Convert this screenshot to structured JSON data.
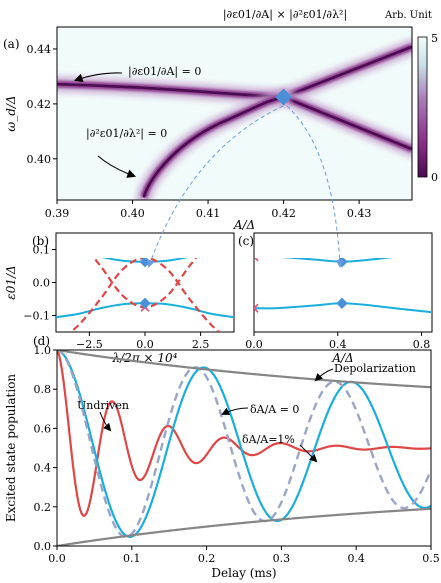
{
  "panel_a": {
    "panel_label": "(a)",
    "colorbar_header": "|∂ε01/∂A| × |∂²ε01/∂λ²|",
    "colorbar_unit": "Arb. Unit",
    "colorbar_ticks": [
      "5",
      "0"
    ],
    "annotation_first": "|∂ε01/∂A| = 0",
    "annotation_second": "|∂²ε01/∂λ²| = 0"
  },
  "panel_b": {
    "panel_label": "(b)"
  },
  "panel_c": {
    "panel_label": "(c)"
  },
  "panel_d": {
    "panel_label": "(d)",
    "annotation_undriven": "Undriven",
    "annotation_zero": "δA/A = 0",
    "annotation_one": "δA/A=1%",
    "annotation_depol": "Depolarization"
  },
  "colors": {
    "cyan": "#1aaedc",
    "red": "#e04646",
    "dashed_gray": "#9aa5c8",
    "gray": "#858585",
    "diamond": "#4a90d9",
    "cross": "#e05a7a"
  },
  "chart_data": [
    {
      "type": "heatmap",
      "panel": "(a)",
      "xlabel": "A/Δ",
      "ylabel": "ω_d/Δ",
      "xlim": [
        0.39,
        0.437
      ],
      "ylim": [
        0.385,
        0.448
      ],
      "xticks": [
        "0.39",
        "0.40",
        "0.41",
        "0.42",
        "0.43"
      ],
      "yticks": [
        "0.40",
        "0.42",
        "0.44"
      ],
      "colorbar_range": [
        0,
        5
      ],
      "marker": {
        "x": 0.42,
        "y": 0.4225
      }
    },
    {
      "type": "line",
      "panel": "(b)",
      "xlabel": "λ/2π × 10⁴",
      "ylabel": "ε01/Δ",
      "xlim": [
        -4,
        4
      ],
      "ylim": [
        -0.15,
        0.15
      ],
      "xticks": [
        "−2.5",
        "0.0",
        "2.5"
      ],
      "yticks": [
        "0.1",
        "0.0",
        "−0.1"
      ],
      "series": [
        {
          "color": "cyan",
          "style": "solid",
          "x": [
            -4,
            -3,
            -2,
            -1,
            0,
            1,
            2,
            3,
            4
          ],
          "y": [
            0.105,
            0.095,
            0.078,
            0.066,
            0.063,
            0.066,
            0.078,
            0.095,
            0.105
          ]
        },
        {
          "color": "cyan",
          "style": "solid",
          "x": [
            -4,
            -3,
            -2,
            -1,
            0,
            1,
            2,
            3,
            4
          ],
          "y": [
            -0.105,
            -0.095,
            -0.078,
            -0.066,
            -0.063,
            -0.066,
            -0.078,
            -0.095,
            -0.105
          ]
        },
        {
          "color": "red",
          "style": "dashed",
          "x": [
            -4,
            -3,
            -2,
            -1,
            0,
            1,
            2,
            3,
            4
          ],
          "y": [
            0.185,
            0.13,
            0.05,
            -0.04,
            -0.075,
            -0.04,
            0.05,
            0.13,
            0.185
          ]
        },
        {
          "color": "red",
          "style": "dashed",
          "x": [
            -4,
            -3,
            -2,
            -1,
            0,
            1,
            2,
            3,
            4
          ],
          "y": [
            -0.185,
            -0.13,
            -0.05,
            0.04,
            0.075,
            0.04,
            -0.05,
            -0.13,
            -0.185
          ]
        }
      ],
      "markers": [
        {
          "x": 0,
          "y": 0.063
        },
        {
          "x": 0,
          "y": -0.063
        }
      ],
      "crosses": [
        {
          "x": 0,
          "y": 0.075
        },
        {
          "x": 0,
          "y": -0.075
        }
      ]
    },
    {
      "type": "line",
      "panel": "(c)",
      "xlabel": "A/Δ",
      "xlim": [
        0,
        0.85
      ],
      "ylim": [
        -0.15,
        0.15
      ],
      "xticks": [
        "0.0",
        "0.4",
        "0.8"
      ],
      "series": [
        {
          "color": "cyan",
          "style": "solid",
          "x": [
            0,
            0.1,
            0.2,
            0.3,
            0.42,
            0.55,
            0.7,
            0.85
          ],
          "y": [
            0.078,
            0.078,
            0.074,
            0.069,
            0.063,
            0.069,
            0.08,
            0.09
          ]
        },
        {
          "color": "cyan",
          "style": "solid",
          "x": [
            0,
            0.1,
            0.2,
            0.3,
            0.42,
            0.55,
            0.7,
            0.85
          ],
          "y": [
            -0.078,
            -0.078,
            -0.074,
            -0.069,
            -0.063,
            -0.069,
            -0.08,
            -0.09
          ]
        }
      ],
      "markers": [
        {
          "x": 0.42,
          "y": 0.063
        },
        {
          "x": 0.42,
          "y": -0.063
        }
      ],
      "crosses": [
        {
          "x": 0,
          "y": 0.078
        },
        {
          "x": 0,
          "y": -0.078
        }
      ]
    },
    {
      "type": "line",
      "panel": "(d)",
      "xlabel": "Delay (ms)",
      "ylabel": "Excited state population",
      "xlim": [
        0,
        0.5
      ],
      "ylim": [
        0,
        1
      ],
      "xticks": [
        "0.0",
        "0.1",
        "0.2",
        "0.3",
        "0.4",
        "0.5"
      ],
      "yticks": [
        "0.0",
        "0.2",
        "0.4",
        "0.6",
        "0.8",
        "1.0"
      ],
      "series": [
        {
          "name": "Undriven",
          "color": "red",
          "style": "solid",
          "model": {
            "amp0": 0.5,
            "decay_ms": 0.1,
            "period_ms": 0.075,
            "offset": 0.5
          }
        },
        {
          "name": "δA/A = 0",
          "color": "cyan",
          "style": "solid",
          "model": {
            "amp0": 0.5,
            "decay_ms": 1.0,
            "period_ms": 0.197,
            "offset": 0.5
          }
        },
        {
          "name": "δA/A=1%",
          "color": "dashed_gray",
          "style": "dashed",
          "model": {
            "amp0": 0.5,
            "decay_ms": 0.95,
            "period_ms": 0.186,
            "offset": 0.5
          }
        },
        {
          "name": "Depolarization",
          "color": "gray",
          "style": "solid",
          "model": {
            "from": 1.0,
            "to": 0.81
          }
        },
        {
          "color": "gray",
          "style": "solid",
          "model": {
            "from": 0.0,
            "to": 0.19
          }
        }
      ]
    }
  ]
}
